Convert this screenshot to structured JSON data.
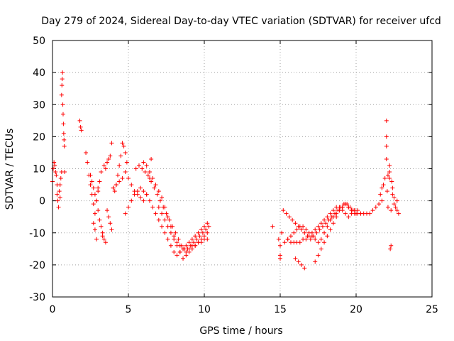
{
  "chart_data": {
    "type": "scatter",
    "title": "Day 279 of 2024, Sidereal Day-to-day VTEC variation (SDTVAR) for receiver ufcd",
    "xlabel": "GPS time / hours",
    "ylabel": "SDTVAR / TECUs",
    "xlim": [
      0,
      25
    ],
    "ylim": [
      -30,
      50
    ],
    "xticks": [
      "0",
      "5",
      "10",
      "15",
      "20",
      "25"
    ],
    "yticks": [
      "-30",
      "-20",
      "-10",
      "0",
      "10",
      "20",
      "30",
      "40",
      "50"
    ],
    "grid": true,
    "marker": "plus",
    "color": "#ff0000",
    "series": [
      {
        "name": "SDTVAR",
        "x": [
          0.0,
          0.05,
          0.1,
          0.15,
          0.2,
          0.25,
          0.3,
          0.3,
          0.35,
          0.4,
          0.45,
          0.5,
          0.5,
          0.55,
          0.6,
          0.6,
          0.62,
          0.64,
          0.66,
          0.68,
          0.7,
          0.72,
          0.74,
          0.76,
          0.78,
          0.8,
          1.8,
          1.85,
          1.9,
          2.2,
          2.3,
          2.4,
          2.5,
          2.6,
          2.7,
          2.8,
          2.9,
          3.0,
          2.5,
          2.6,
          2.7,
          2.8,
          2.9,
          3.0,
          3.1,
          3.2,
          3.3,
          2.7,
          2.8,
          2.9,
          3.0,
          3.1,
          3.2,
          3.4,
          3.5,
          3.6,
          3.7,
          3.8,
          3.9,
          3.3,
          3.4,
          3.5,
          3.6,
          3.7,
          3.8,
          3.9,
          4.0,
          4.1,
          4.2,
          4.3,
          4.4,
          4.5,
          4.6,
          4.7,
          4.8,
          4.9,
          4.0,
          4.2,
          4.4,
          4.6,
          4.8,
          5.0,
          5.2,
          5.4,
          5.6,
          5.8,
          6.0,
          6.2,
          6.4,
          6.5,
          4.8,
          5.0,
          5.2,
          5.4,
          5.6,
          5.8,
          6.0,
          6.2,
          6.4,
          6.6,
          6.8,
          7.0,
          7.2,
          7.4,
          7.6,
          7.8,
          8.0,
          8.2,
          8.4,
          8.6,
          8.8,
          9.0,
          9.2,
          9.4,
          9.6,
          9.8,
          10.0,
          10.2,
          5.5,
          5.7,
          5.9,
          6.1,
          6.3,
          6.5,
          6.7,
          6.9,
          7.1,
          7.3,
          7.5,
          7.7,
          7.9,
          8.1,
          8.3,
          8.5,
          8.7,
          8.9,
          9.1,
          9.3,
          9.5,
          9.7,
          9.9,
          10.1,
          10.3,
          6.0,
          6.2,
          6.4,
          6.6,
          6.8,
          7.0,
          7.2,
          7.4,
          7.6,
          7.8,
          8.0,
          8.2,
          8.4,
          8.6,
          8.8,
          9.0,
          9.2,
          9.4,
          9.6,
          9.8,
          10.0,
          10.2,
          7.0,
          7.2,
          7.4,
          7.6,
          7.8,
          8.0,
          8.2,
          8.4,
          8.6,
          8.8,
          9.0,
          9.2,
          9.4,
          9.6,
          9.8,
          10.0,
          10.2,
          14.5,
          14.9,
          15.0,
          15.0,
          15.0,
          15.1,
          15.2,
          15.4,
          15.6,
          15.8,
          16.0,
          16.2,
          16.4,
          16.6,
          16.8,
          17.0,
          17.2,
          17.4,
          17.6,
          17.8,
          18.0,
          18.2,
          18.4,
          18.6,
          18.8,
          19.0,
          19.2,
          19.4,
          19.6,
          19.8,
          20.0,
          15.3,
          15.5,
          15.7,
          15.9,
          16.1,
          16.3,
          16.5,
          16.7,
          16.9,
          17.1,
          17.3,
          17.5,
          17.7,
          17.9,
          18.1,
          18.3,
          18.5,
          18.7,
          18.9,
          19.1,
          19.3,
          19.5,
          19.7,
          19.9,
          15.5,
          15.7,
          15.9,
          16.1,
          16.3,
          16.5,
          16.7,
          16.9,
          17.1,
          17.3,
          17.5,
          17.7,
          17.9,
          18.1,
          18.3,
          18.5,
          18.7,
          18.9,
          19.1,
          19.3,
          19.5,
          19.7,
          19.9,
          20.1,
          20.3,
          16.0,
          16.2,
          16.4,
          16.6,
          17.3,
          17.5,
          17.7,
          17.9,
          18.1,
          18.3,
          18.5,
          18.7,
          18.9,
          19.1,
          19.3,
          19.5,
          19.7,
          19.9,
          20.1,
          20.3,
          20.5,
          20.7,
          20.9,
          21.1,
          21.3,
          21.5,
          21.7,
          21.6,
          21.7,
          21.8,
          21.9,
          22.0,
          22.0,
          22.0,
          22.0,
          22.05,
          22.1,
          22.1,
          22.2,
          22.2,
          22.2,
          22.25,
          22.3,
          22.3,
          22.35,
          22.4,
          22.4,
          22.5,
          22.5,
          22.6,
          22.7,
          22.7,
          22.8
        ],
        "y": [
          6,
          10,
          12,
          11,
          9,
          8,
          5,
          2,
          0,
          -2,
          3,
          1,
          5,
          7,
          9,
          33,
          36,
          38,
          40,
          30,
          27,
          24,
          21,
          19,
          17,
          9,
          25,
          23,
          22,
          15,
          12,
          8,
          5,
          2,
          -1,
          -4,
          0,
          3,
          8,
          6,
          4,
          2,
          0,
          -3,
          -6,
          -8,
          -10,
          -7,
          -9,
          -12,
          4,
          6,
          9,
          11,
          10,
          12,
          13,
          14,
          18,
          -11,
          -12,
          -13,
          -3,
          -5,
          -7,
          -9,
          4,
          3,
          5,
          8,
          11,
          14,
          18,
          17,
          15,
          12,
          4,
          5,
          6,
          7,
          9,
          7,
          5,
          3,
          2,
          1,
          0,
          2,
          7,
          13,
          -4,
          -2,
          0,
          2,
          3,
          4,
          3,
          2,
          0,
          -2,
          -4,
          -6,
          -8,
          -10,
          -12,
          -14,
          -16,
          -17,
          -16,
          -15,
          -14,
          -13,
          -12,
          -11,
          -10,
          -9,
          -8,
          -7,
          10,
          11,
          10,
          9,
          8,
          6,
          4,
          2,
          0,
          -2,
          -4,
          -6,
          -8,
          -10,
          -12,
          -14,
          -15,
          -15,
          -14,
          -13,
          -12,
          -11,
          -10,
          -9,
          -8,
          12,
          11,
          9,
          7,
          5,
          3,
          1,
          -2,
          -5,
          -8,
          -11,
          -14,
          -16,
          -18,
          -17,
          -16,
          -15,
          -14,
          -13,
          -12,
          -11,
          -10,
          -2,
          -4,
          -6,
          -8,
          -10,
          -12,
          -13,
          -14,
          -15,
          -16,
          -15,
          -14,
          -14,
          -13,
          -13,
          -12,
          -12,
          -8,
          -12,
          -14,
          -17,
          -18,
          -10,
          -3,
          -4,
          -5,
          -6,
          -7,
          -8,
          -9,
          -10,
          -11,
          -12,
          -11,
          -10,
          -9,
          -8,
          -7,
          -6,
          -5,
          -4,
          -3,
          -2,
          -1,
          -1,
          -2,
          -3,
          -4,
          -13,
          -12,
          -11,
          -10,
          -9,
          -8,
          -8,
          -9,
          -10,
          -11,
          -12,
          -13,
          -12,
          -10,
          -8,
          -6,
          -5,
          -4,
          -3,
          -2,
          -1,
          -2,
          -3,
          -4,
          -12,
          -13,
          -13,
          -13,
          -13,
          -12,
          -12,
          -11,
          -10,
          -9,
          -8,
          -7,
          -6,
          -5,
          -4,
          -3,
          -2,
          -2,
          -3,
          -4,
          -5,
          -4,
          -3,
          -3,
          -4,
          -18,
          -19,
          -20,
          -21,
          -19,
          -17,
          -15,
          -13,
          -11,
          -9,
          -7,
          -5,
          -3,
          -2,
          -1,
          -2,
          -3,
          -3,
          -4,
          -4,
          -4,
          -4,
          -4,
          -3,
          -2,
          -1,
          0,
          2,
          4,
          5,
          7,
          13,
          17,
          20,
          25,
          3,
          -2,
          8,
          11,
          9,
          7,
          -15,
          -14,
          -3,
          6,
          4,
          2,
          1,
          -1,
          -2,
          0,
          -3,
          -4
        ]
      }
    ]
  }
}
